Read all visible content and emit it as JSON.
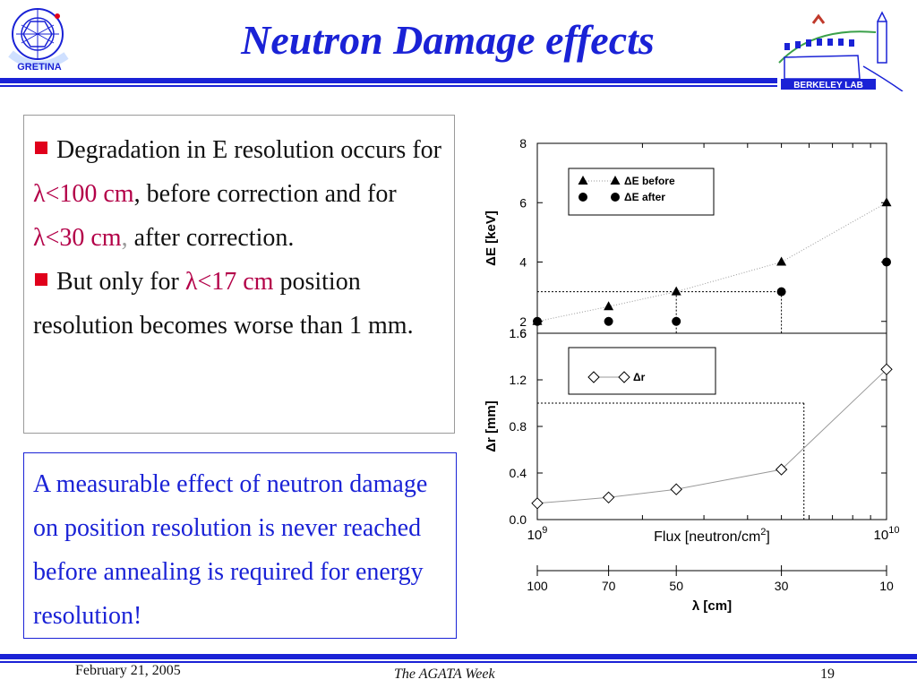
{
  "slide": {
    "title": "Neutron Damage effects",
    "logo_left_text": "GRETINA",
    "logo_right_text": "BERKELEY LAB"
  },
  "box1": {
    "b1_pre": "Degradation in E resolution occurs for ",
    "b1_lam1": "λ<100 cm",
    "b1_mid": ", before correction and for ",
    "b1_lam2": "λ<30 cm",
    "b1_comma": ",",
    "b1_post": " after correction.",
    "b2_pre": "But only for ",
    "b2_lam": "λ<17 cm",
    "b2_post": " position resolution becomes worse than 1 mm."
  },
  "box2": {
    "text": "A measurable effect of neutron damage on position resolution is never reached before annealing is required for energy resolution!"
  },
  "footer": {
    "date": "February 21, 2005",
    "center": "The AGATA Week",
    "page": "19"
  },
  "chart_data": [
    {
      "type": "scatter",
      "ylabel": "ΔE [keV]",
      "ylim": [
        1.6,
        8
      ],
      "yticks": [
        "1.6",
        "2",
        "4",
        "6",
        "8"
      ],
      "x_scale": "log",
      "xlim": [
        1000000000.0,
        10000000000.0
      ],
      "legend_placement": "top-left",
      "series": [
        {
          "name": "ΔE before",
          "marker": "triangle",
          "x": [
            1000000000.0,
            1600000000.0,
            2500000000.0,
            5000000000.0,
            10000000000.0
          ],
          "y": [
            2.0,
            2.5,
            3.0,
            4.0,
            6.0
          ]
        },
        {
          "name": "ΔE after",
          "marker": "circle",
          "x": [
            1000000000.0,
            1600000000.0,
            2500000000.0,
            5000000000.0,
            10000000000.0
          ],
          "y": [
            2.0,
            2.0,
            2.0,
            3.0,
            4.0
          ]
        }
      ],
      "guides": {
        "y": 3.0,
        "x": [
          2500000000.0,
          5000000000.0
        ]
      }
    },
    {
      "type": "line",
      "ylabel": "Δr [mm]",
      "xlabel_main": "Flux [neutron/cm",
      "xlabel_sup": "2",
      "xlabel_end": "]",
      "ylim": [
        0.0,
        1.6
      ],
      "yticks": [
        "0.0",
        "0.4",
        "0.8",
        "1.2",
        "1.6"
      ],
      "x_scale": "log",
      "xlim": [
        1000000000.0,
        10000000000.0
      ],
      "xtick_labels": [
        {
          "base": "10",
          "exp": "9"
        },
        {
          "base": "10",
          "exp": "10"
        }
      ],
      "legend_placement": "top-left",
      "series": [
        {
          "name": "Δr",
          "marker": "diamond",
          "x": [
            1000000000.0,
            1600000000.0,
            2500000000.0,
            5000000000.0,
            10000000000.0
          ],
          "y": [
            0.14,
            0.19,
            0.26,
            0.43,
            1.29
          ]
        }
      ],
      "guides": {
        "y": 1.0,
        "x": [
          5800000000.0
        ]
      }
    },
    {
      "type": "axis",
      "xlabel": "λ [cm]",
      "ticks": [
        {
          "label": "100",
          "flux": 1000000000.0
        },
        {
          "label": "70",
          "flux": 1600000000.0
        },
        {
          "label": "50",
          "flux": 2500000000.0
        },
        {
          "label": "30",
          "flux": 5000000000.0
        },
        {
          "label": "10",
          "flux": 10000000000.0
        }
      ]
    }
  ]
}
